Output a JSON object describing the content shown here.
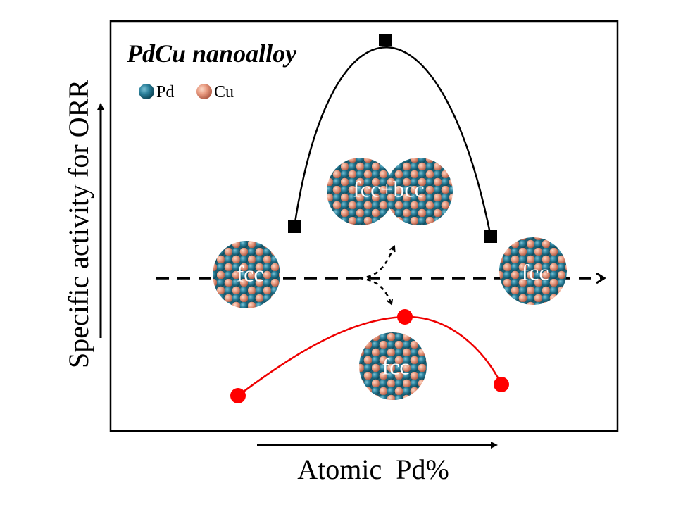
{
  "title": "PdCu nanoalloy",
  "legend": {
    "items": [
      "Pd",
      "Cu"
    ]
  },
  "y_axis_label": "Specific activity for ORR",
  "x_axis_label": "Atomic  Pd%",
  "particles": {
    "labels": [
      "fcc",
      "fcc+bcc",
      "fcc",
      "fcc"
    ]
  }
}
